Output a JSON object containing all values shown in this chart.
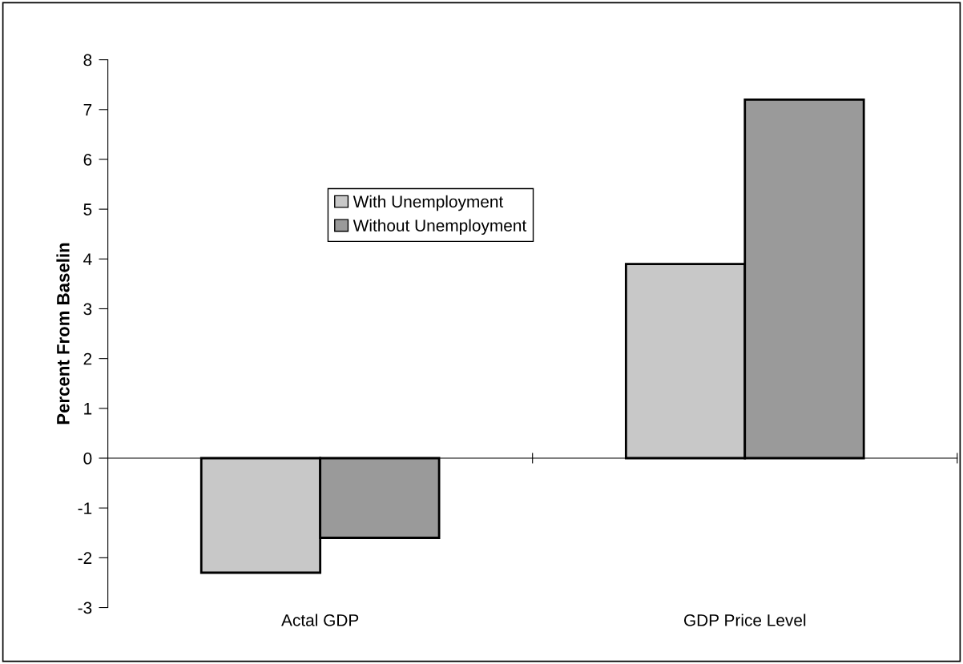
{
  "chart_data": {
    "type": "bar",
    "ylabel": "Percent From Baselin",
    "categories": [
      "Actal GDP",
      "GDP Price Level"
    ],
    "series": [
      {
        "name": "With Unemployment",
        "color": "#c8c8c8",
        "values": [
          -2.3,
          3.9
        ]
      },
      {
        "name": "Without Unemployment",
        "color": "#9a9a9a",
        "values": [
          -1.6,
          7.2
        ]
      }
    ],
    "ylim": [
      -3,
      8
    ],
    "yticks": [
      -3,
      -2,
      -1,
      0,
      1,
      2,
      3,
      4,
      5,
      6,
      7,
      8
    ],
    "legend": "top"
  }
}
